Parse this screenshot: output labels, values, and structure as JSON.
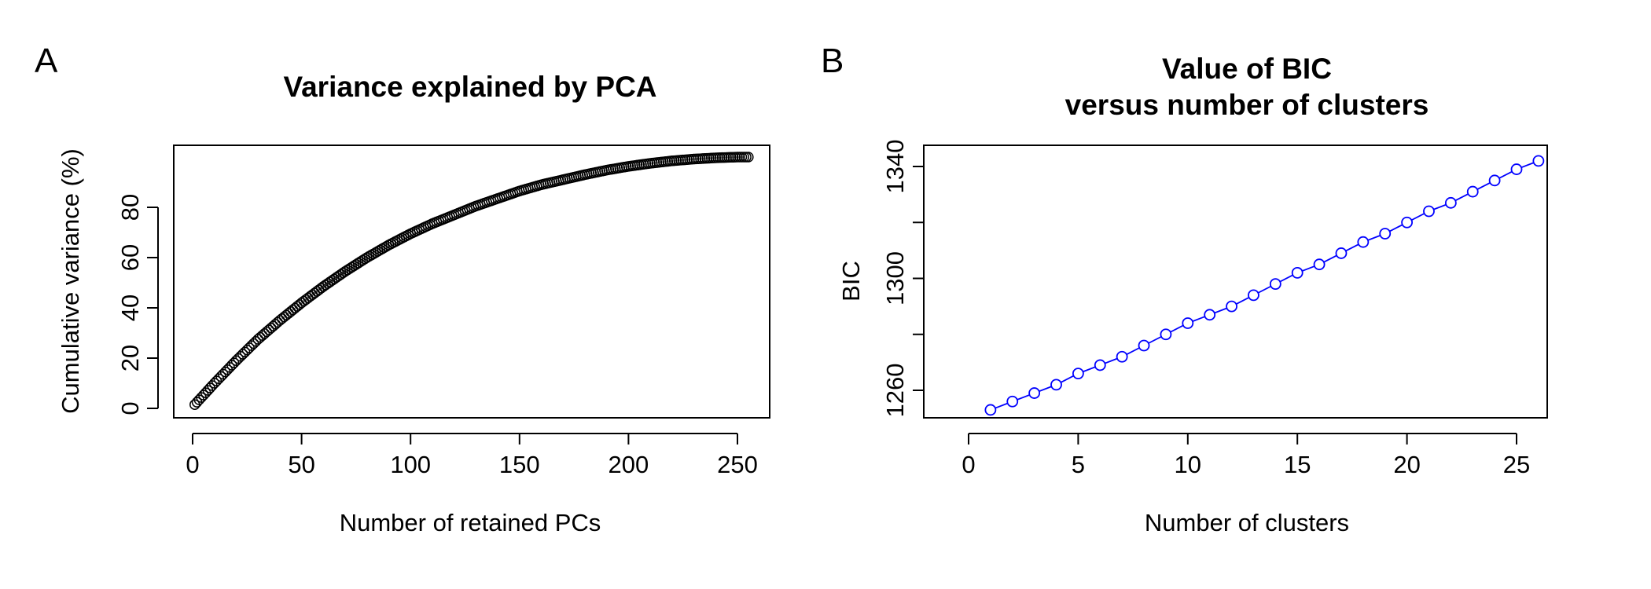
{
  "chart_data": [
    {
      "type": "scatter",
      "panel_label": "A",
      "title": "Variance explained by PCA",
      "xlabel": "Number of retained PCs",
      "ylabel": "Cumulative variance (%)",
      "xlim": [
        0,
        255
      ],
      "ylim": [
        0,
        100
      ],
      "x_ticks": [
        0,
        50,
        100,
        150,
        200,
        250
      ],
      "y_ticks": [
        0,
        20,
        40,
        60,
        80
      ],
      "marker": "open-circle",
      "color": "#000000",
      "series": [
        {
          "x": [
            1,
            10,
            20,
            30,
            40,
            50,
            60,
            70,
            80,
            90,
            100,
            110,
            120,
            130,
            140,
            150,
            160,
            170,
            180,
            190,
            200,
            210,
            220,
            230,
            240,
            250,
            255
          ],
          "y": [
            1.5,
            10,
            19,
            27.5,
            35,
            42,
            48.5,
            54.5,
            60,
            65,
            69.5,
            73.5,
            77,
            80.5,
            83.5,
            86.5,
            89,
            91,
            93,
            94.8,
            96.3,
            97.5,
            98.5,
            99.2,
            99.7,
            100,
            100
          ]
        }
      ],
      "grid": false,
      "legend": "none"
    },
    {
      "type": "line",
      "panel_label": "B",
      "title": "Value of BIC\nversus number of clusters",
      "title_lines": [
        "Value of BIC",
        "versus number of clusters"
      ],
      "xlabel": "Number of clusters",
      "ylabel": "BIC",
      "xlim": [
        0,
        27
      ],
      "ylim": [
        1250,
        1343
      ],
      "x_ticks": [
        0,
        5,
        10,
        15,
        20,
        25
      ],
      "y_ticks": [
        1260,
        1300,
        1340
      ],
      "y_minor_ticks": [
        1280,
        1320
      ],
      "marker": "open-circle",
      "color": "#0000FF",
      "series": [
        {
          "x": [
            1,
            2,
            3,
            4,
            5,
            6,
            7,
            8,
            9,
            10,
            11,
            12,
            13,
            14,
            15,
            16,
            17,
            18,
            19,
            20,
            21,
            22,
            23,
            24,
            25,
            26
          ],
          "y": [
            1253,
            1256,
            1259,
            1262,
            1266,
            1269,
            1272,
            1276,
            1280,
            1284,
            1287,
            1290,
            1294,
            1298,
            1302,
            1305,
            1309,
            1313,
            1316,
            1320,
            1324,
            1327,
            1331,
            1335,
            1339,
            1342
          ]
        }
      ],
      "grid": false,
      "legend": "none"
    }
  ]
}
